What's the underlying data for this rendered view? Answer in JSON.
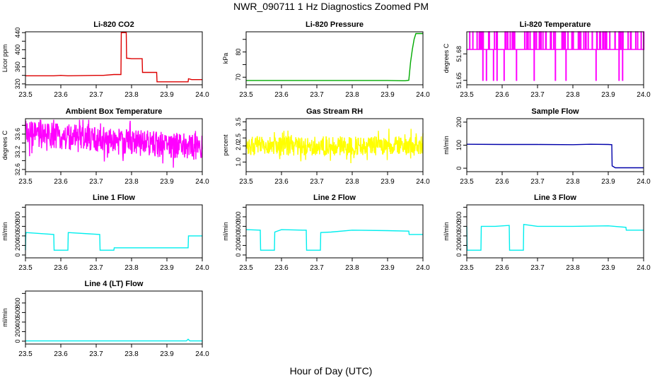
{
  "title": "NWR_090711  1 Hz Diagnostics Zoomed PM",
  "xlabel": "Hour of Day (UTC)",
  "chart_data": [
    {
      "type": "line",
      "title": "Li-820 CO2",
      "ylabel": "Licor ppm",
      "color": "#dd0000",
      "xlim": [
        23.5,
        24.0
      ],
      "xticks": [
        "23.5",
        "23.6",
        "23.7",
        "23.8",
        "23.9",
        "24.0"
      ],
      "ylim": [
        318,
        442
      ],
      "yticks": [
        320,
        340,
        360,
        380,
        400,
        420,
        440
      ],
      "yticklabels": [
        "320",
        "",
        "360",
        "",
        "400",
        "",
        "440"
      ],
      "x": [
        23.5,
        23.58,
        23.6,
        23.62,
        23.7,
        23.72,
        23.75,
        23.77,
        23.771,
        23.78,
        23.785,
        23.786,
        23.79,
        23.8,
        23.82,
        23.83,
        23.831,
        23.84,
        23.86,
        23.871,
        23.872,
        23.88,
        23.9,
        23.94,
        23.96,
        23.961,
        23.97,
        24.0
      ],
      "y": [
        339,
        339,
        340,
        339,
        340,
        340,
        342,
        342,
        440,
        440,
        440,
        380,
        380,
        379,
        379,
        379,
        347,
        347,
        347,
        347,
        325,
        325,
        325,
        325,
        325,
        332,
        330,
        330
      ]
    },
    {
      "type": "line",
      "title": "Li-820 Pressure",
      "ylabel": "kPa",
      "color": "#00aa00",
      "xlim": [
        23.5,
        24.0
      ],
      "xticks": [
        "23.5",
        "23.6",
        "23.7",
        "23.8",
        "23.9",
        "24.0"
      ],
      "ylim": [
        67,
        88
      ],
      "yticks": [
        70,
        75,
        80,
        85
      ],
      "yticklabels": [
        "70",
        "",
        "80",
        ""
      ],
      "x": [
        23.5,
        23.6,
        23.7,
        23.8,
        23.9,
        23.94,
        23.95,
        23.96,
        23.965,
        23.97,
        23.975,
        23.98,
        24.0
      ],
      "y": [
        68.7,
        68.7,
        68.7,
        68.7,
        68.7,
        68.6,
        68.6,
        68.8,
        76,
        81,
        85,
        87.3,
        87.3
      ]
    },
    {
      "type": "line",
      "title": "Li-820 Temperature",
      "ylabel": "degrees C",
      "color": "#ff00ff",
      "xlim": [
        23.5,
        24.0
      ],
      "xticks": [
        "23.5",
        "23.6",
        "23.7",
        "23.8",
        "23.9",
        "24.0"
      ],
      "ylim": [
        51.645,
        51.705
      ],
      "yticks": [
        51.65,
        51.68
      ],
      "yticklabels": [
        "51.65",
        "51.68"
      ],
      "levels": [
        51.65,
        51.685,
        51.705
      ],
      "baseline": 51.685,
      "up_spikes": 85,
      "down_spikes": [
        23.545,
        23.555,
        23.575,
        23.585,
        23.605,
        23.64,
        23.69,
        23.75,
        23.78,
        23.865,
        23.93,
        23.94
      ]
    },
    {
      "type": "line",
      "title": "Ambient Box Temperature",
      "ylabel": "degrees C",
      "color": "#ff00ff",
      "xlim": [
        23.5,
        24.0
      ],
      "xticks": [
        "23.5",
        "23.6",
        "23.7",
        "23.8",
        "23.9",
        "24.0"
      ],
      "ylim": [
        32.55,
        33.75
      ],
      "yticks": [
        32.6,
        32.8,
        33.0,
        33.2,
        33.4,
        33.6
      ],
      "yticklabels": [
        "32.6",
        "",
        "33.2",
        "",
        "33.6",
        ""
      ],
      "trend": [
        [
          23.5,
          33.4
        ],
        [
          24.0,
          33.1
        ]
      ],
      "noise": 0.3
    },
    {
      "type": "line",
      "title": "Gas Stream RH",
      "ylabel": "percent",
      "color": "#ffff00",
      "xlim": [
        23.5,
        24.0
      ],
      "xticks": [
        "23.5",
        "23.6",
        "23.7",
        "23.8",
        "23.9",
        "24.0"
      ],
      "ylim": [
        0.4,
        3.7
      ],
      "yticks": [
        1.0,
        1.5,
        2.0,
        2.5,
        3.0,
        3.5
      ],
      "yticklabels": [
        "1.0",
        "",
        "2.0",
        "2.5",
        "",
        "3.5"
      ],
      "trend": [
        [
          23.5,
          2.0
        ],
        [
          24.0,
          2.0
        ]
      ],
      "noise": 0.6
    },
    {
      "type": "line",
      "title": "Sample Flow",
      "ylabel": "ml/min",
      "color": "#0000aa",
      "xlim": [
        23.5,
        24.0
      ],
      "xticks": [
        "23.5",
        "23.6",
        "23.7",
        "23.8",
        "23.9",
        "24.0"
      ],
      "ylim": [
        -15,
        215
      ],
      "yticks": [
        0,
        100,
        200
      ],
      "yticklabels": [
        "0",
        "100",
        "200"
      ],
      "x": [
        23.5,
        23.6,
        23.7,
        23.8,
        23.85,
        23.9,
        23.91,
        23.911,
        23.92,
        24.0
      ],
      "y": [
        104,
        103,
        103,
        102,
        104,
        103,
        102,
        10,
        2,
        2
      ]
    },
    {
      "type": "line",
      "title": "Line 1 Flow",
      "ylabel": "ml/min",
      "color": "#00eeee",
      "xlim": [
        23.5,
        24.0
      ],
      "xticks": [
        "23.5",
        "23.6",
        "23.7",
        "23.8",
        "23.9",
        "24.0"
      ],
      "ylim": [
        -60,
        1050
      ],
      "yticks": [
        0,
        200,
        400,
        600,
        800,
        1000
      ],
      "yticklabels": [
        "0",
        "200",
        "400",
        "600",
        "800",
        ""
      ],
      "x": [
        23.5,
        23.501,
        23.502,
        23.58,
        23.581,
        23.62,
        23.621,
        23.71,
        23.711,
        23.75,
        23.751,
        23.95,
        23.96,
        23.961,
        24.0
      ],
      "y": [
        100,
        430,
        470,
        430,
        100,
        100,
        470,
        430,
        100,
        100,
        150,
        150,
        150,
        400,
        400
      ]
    },
    {
      "type": "line",
      "title": "Line 2 Flow",
      "ylabel": "ml/min",
      "color": "#00eeee",
      "xlim": [
        23.5,
        24.0
      ],
      "xticks": [
        "23.5",
        "23.6",
        "23.7",
        "23.8",
        "23.9",
        "24.0"
      ],
      "ylim": [
        -60,
        1050
      ],
      "yticks": [
        0,
        200,
        400,
        600,
        800,
        1000
      ],
      "yticklabels": [
        "0",
        "200",
        "400",
        "600",
        "800",
        ""
      ],
      "x": [
        23.5,
        23.54,
        23.541,
        23.58,
        23.581,
        23.6,
        23.66,
        23.67,
        23.671,
        23.71,
        23.711,
        23.74,
        23.8,
        23.9,
        23.96,
        23.961,
        24.0
      ],
      "y": [
        530,
        520,
        100,
        100,
        480,
        530,
        520,
        520,
        100,
        100,
        470,
        480,
        520,
        510,
        500,
        430,
        430
      ]
    },
    {
      "type": "line",
      "title": "Line 3 Flow",
      "ylabel": "ml/min",
      "color": "#00eeee",
      "xlim": [
        23.5,
        24.0
      ],
      "xticks": [
        "23.5",
        "23.6",
        "23.7",
        "23.8",
        "23.9",
        "24.0"
      ],
      "ylim": [
        -60,
        1050
      ],
      "yticks": [
        0,
        200,
        400,
        600,
        800,
        1000
      ],
      "yticklabels": [
        "0",
        "200",
        "400",
        "600",
        "800",
        ""
      ],
      "x": [
        23.5,
        23.501,
        23.502,
        23.54,
        23.541,
        23.58,
        23.62,
        23.621,
        23.66,
        23.661,
        23.7,
        23.8,
        23.9,
        23.95,
        23.951,
        24.0
      ],
      "y": [
        600,
        100,
        100,
        100,
        600,
        600,
        620,
        100,
        100,
        640,
        600,
        600,
        610,
        580,
        520,
        520
      ]
    },
    {
      "type": "line",
      "title": "Line 4 (LT) Flow",
      "ylabel": "ml/min",
      "color": "#00eeee",
      "xlim": [
        23.5,
        24.0
      ],
      "xticks": [
        "23.5",
        "23.6",
        "23.7",
        "23.8",
        "23.9",
        "24.0"
      ],
      "ylim": [
        -60,
        1050
      ],
      "yticks": [
        0,
        200,
        400,
        600,
        800,
        1000
      ],
      "yticklabels": [
        "0",
        "200",
        "400",
        "600",
        "800",
        ""
      ],
      "x": [
        23.5,
        23.95,
        23.955,
        23.96,
        23.965,
        24.0
      ],
      "y": [
        5,
        5,
        5,
        40,
        5,
        5
      ]
    }
  ]
}
